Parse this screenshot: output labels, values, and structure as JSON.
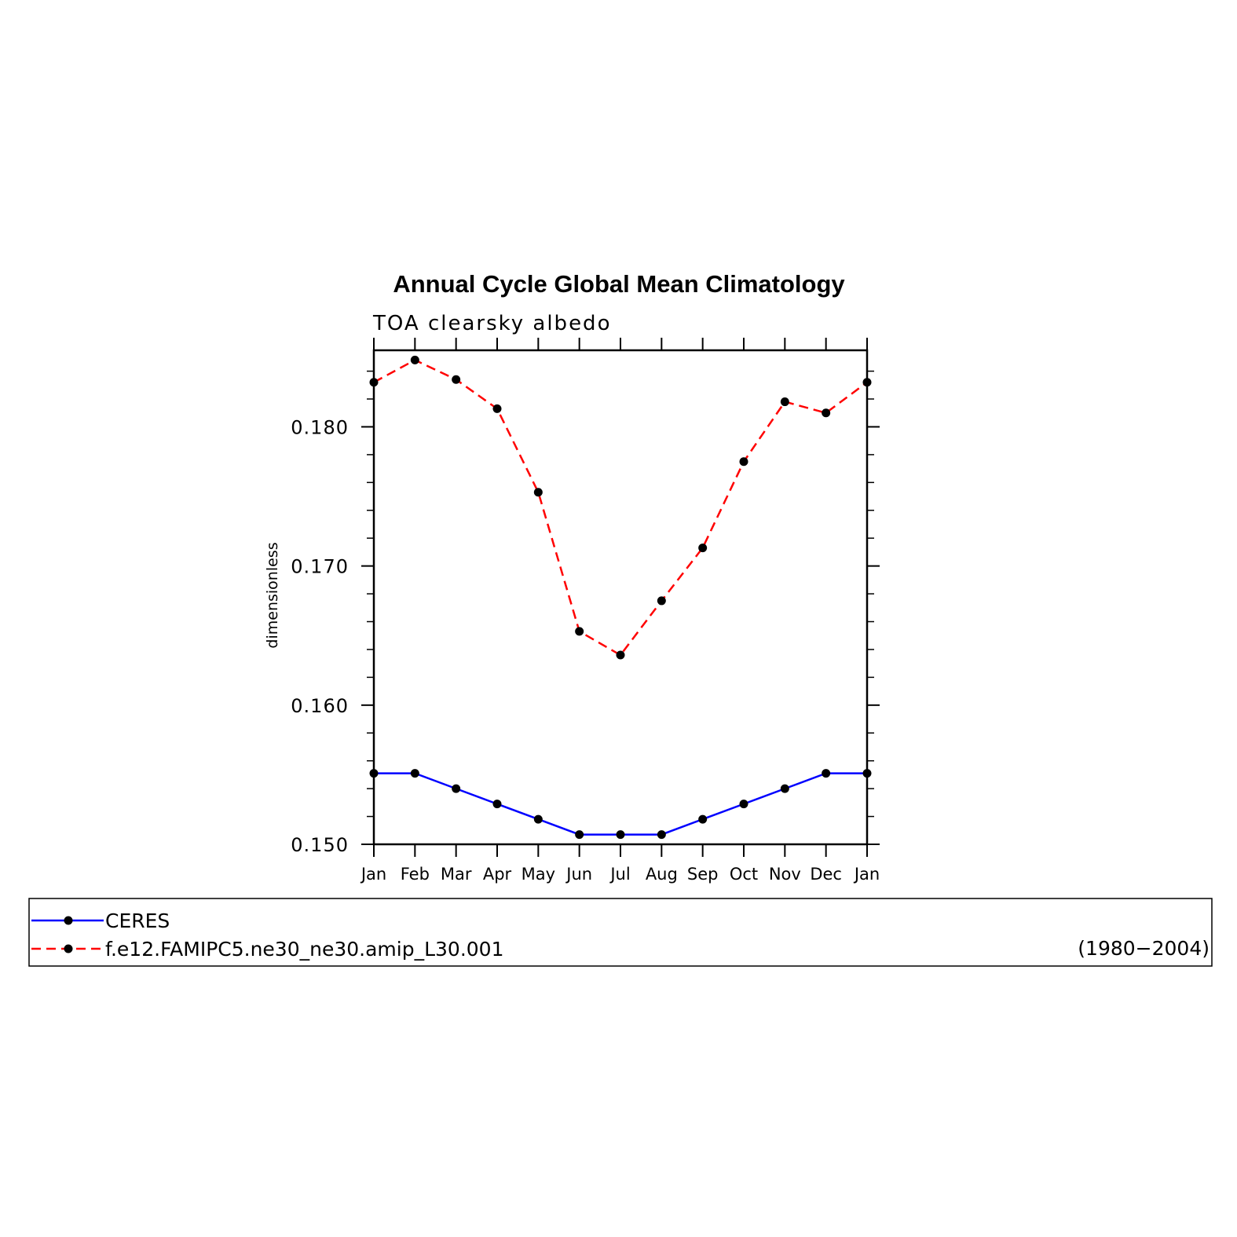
{
  "chart_data": {
    "type": "line",
    "title": "Annual Cycle Global Mean Climatology",
    "subtitle": "TOA clearsky albedo",
    "xlabel": "",
    "ylabel": "dimensionless",
    "categories": [
      "Jan",
      "Feb",
      "Mar",
      "Apr",
      "May",
      "Jun",
      "Jul",
      "Aug",
      "Sep",
      "Oct",
      "Nov",
      "Dec",
      "Jan"
    ],
    "ylim": [
      0.15,
      0.1855
    ],
    "yticks": [
      "0.150",
      "0.160",
      "0.170",
      "0.180"
    ],
    "ytick_values": [
      0.15,
      0.16,
      0.17,
      0.18
    ],
    "grid": false,
    "legend_position": "bottom",
    "series": [
      {
        "name": "CERES",
        "color": "#0000ff",
        "line_style": "solid",
        "marker": "filled-circle",
        "values": [
          0.1551,
          0.1551,
          0.154,
          0.1529,
          0.1518,
          0.1507,
          0.1507,
          0.1507,
          0.1518,
          0.1529,
          0.154,
          0.1551,
          0.1551
        ]
      },
      {
        "name": "f.e12.FAMIPC5.ne30_ne30.amip_L30.001",
        "color": "#ff0000",
        "line_style": "dashed",
        "marker": "filled-circle",
        "values": [
          0.1832,
          0.1848,
          0.1834,
          0.1813,
          0.1753,
          0.1653,
          0.1636,
          0.1675,
          0.1713,
          0.1775,
          0.1818,
          0.181,
          0.1832
        ]
      }
    ],
    "legend_note": "(1980−2004)"
  }
}
